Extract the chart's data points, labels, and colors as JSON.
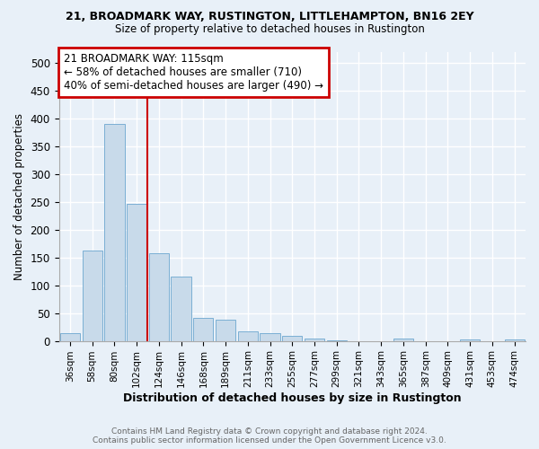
{
  "title1": "21, BROADMARK WAY, RUSTINGTON, LITTLEHAMPTON, BN16 2EY",
  "title2": "Size of property relative to detached houses in Rustington",
  "xlabel": "Distribution of detached houses by size in Rustington",
  "ylabel": "Number of detached properties",
  "footer1": "Contains HM Land Registry data © Crown copyright and database right 2024.",
  "footer2": "Contains public sector information licensed under the Open Government Licence v3.0.",
  "annotation_line1": "21 BROADMARK WAY: 115sqm",
  "annotation_line2": "← 58% of detached houses are smaller (710)",
  "annotation_line3": "40% of semi-detached houses are larger (490) →",
  "categories": [
    "36sqm",
    "58sqm",
    "80sqm",
    "102sqm",
    "124sqm",
    "146sqm",
    "168sqm",
    "189sqm",
    "211sqm",
    "233sqm",
    "255sqm",
    "277sqm",
    "299sqm",
    "321sqm",
    "343sqm",
    "365sqm",
    "387sqm",
    "409sqm",
    "431sqm",
    "453sqm",
    "474sqm"
  ],
  "values": [
    14,
    163,
    390,
    247,
    157,
    115,
    42,
    38,
    17,
    14,
    9,
    5,
    1,
    0,
    0,
    4,
    0,
    0,
    2,
    0,
    2
  ],
  "bar_color": "#c8daea",
  "bar_edge_color": "#7bafd4",
  "vline_color": "#cc0000",
  "vline_x": 3.5,
  "annotation_box_color": "#cc0000",
  "background_color": "#e8f0f8",
  "grid_color": "#ffffff",
  "ylim": [
    0,
    520
  ],
  "yticks": [
    0,
    50,
    100,
    150,
    200,
    250,
    300,
    350,
    400,
    450,
    500
  ]
}
